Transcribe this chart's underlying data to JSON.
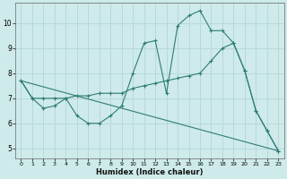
{
  "xlabel": "Humidex (Indice chaleur)",
  "bg_color": "#ceeaea",
  "grid_color": "#b8d8d8",
  "line_color": "#2e7d72",
  "xlim": [
    -0.5,
    23.5
  ],
  "ylim": [
    4.6,
    10.8
  ],
  "xticks": [
    0,
    1,
    2,
    3,
    4,
    5,
    6,
    7,
    8,
    9,
    10,
    11,
    12,
    13,
    14,
    15,
    16,
    17,
    18,
    19,
    20,
    21,
    22,
    23
  ],
  "yticks": [
    5,
    6,
    7,
    8,
    9,
    10
  ],
  "line1_x": [
    0,
    1,
    2,
    3,
    4,
    5,
    6,
    7,
    8,
    9,
    10,
    11,
    12,
    13,
    14,
    15,
    16,
    17,
    18,
    19,
    20,
    21,
    22,
    23
  ],
  "line1_y": [
    7.7,
    7.0,
    6.6,
    6.7,
    7.0,
    6.3,
    6.0,
    6.0,
    6.3,
    6.7,
    8.0,
    9.2,
    9.3,
    7.2,
    9.9,
    10.3,
    10.5,
    9.7,
    9.7,
    9.2,
    8.1,
    6.5,
    5.7,
    4.9
  ],
  "line2_x": [
    0,
    1,
    2,
    3,
    4,
    5,
    6,
    7,
    8,
    9,
    10,
    11,
    12,
    13,
    14,
    15,
    16,
    17,
    18,
    19,
    20,
    21,
    22,
    23
  ],
  "line2_y": [
    7.7,
    7.0,
    7.0,
    7.0,
    7.0,
    7.1,
    7.1,
    7.2,
    7.2,
    7.2,
    7.4,
    7.5,
    7.6,
    7.7,
    7.8,
    7.9,
    8.0,
    8.5,
    9.0,
    9.2,
    8.1,
    6.5,
    5.7,
    4.9
  ],
  "line3_x": [
    0,
    23
  ],
  "line3_y": [
    7.7,
    4.9
  ]
}
